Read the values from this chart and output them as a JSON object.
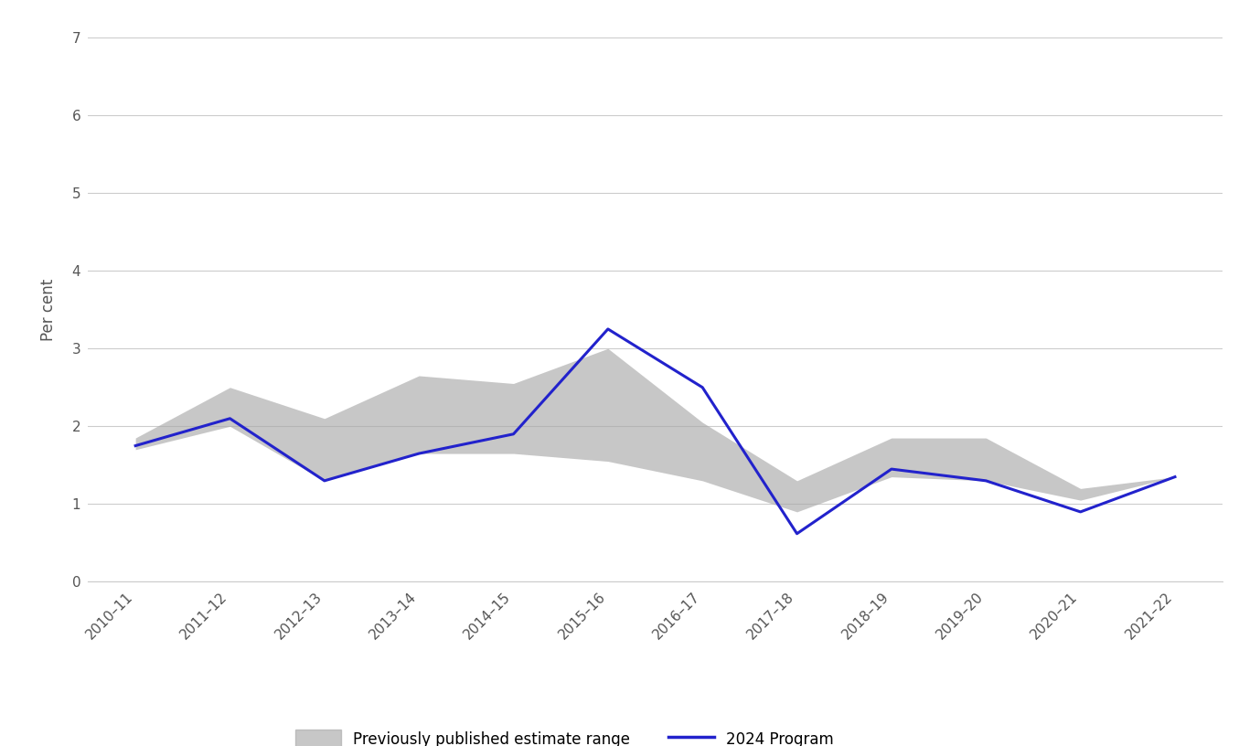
{
  "x_labels": [
    "2010–11",
    "2011–12",
    "2012–13",
    "2013–14",
    "2014–15",
    "2015–16",
    "2016–17",
    "2017–18",
    "2018–19",
    "2019–20",
    "2020–21",
    "2021–22"
  ],
  "blue_line": [
    1.75,
    2.1,
    1.3,
    1.65,
    1.9,
    3.25,
    2.5,
    0.62,
    1.45,
    1.3,
    0.9,
    1.35
  ],
  "band_upper": [
    1.85,
    2.5,
    2.1,
    2.65,
    2.55,
    3.0,
    2.05,
    1.3,
    1.85,
    1.85,
    1.2,
    1.35
  ],
  "band_lower": [
    1.7,
    2.0,
    1.3,
    1.65,
    1.65,
    1.55,
    1.3,
    0.9,
    1.35,
    1.3,
    1.05,
    1.35
  ],
  "band_color": "#aaaaaa",
  "band_alpha": 0.65,
  "line_color": "#2222cc",
  "line_width": 2.2,
  "ylabel": "Per cent",
  "ylim": [
    0,
    7
  ],
  "yticks": [
    0,
    1,
    2,
    3,
    4,
    5,
    6,
    7
  ],
  "grid_color": "#cccccc",
  "legend_band_label": "Previously published estimate range",
  "legend_line_label": "2024 Program",
  "axis_fontsize": 12,
  "tick_fontsize": 11
}
